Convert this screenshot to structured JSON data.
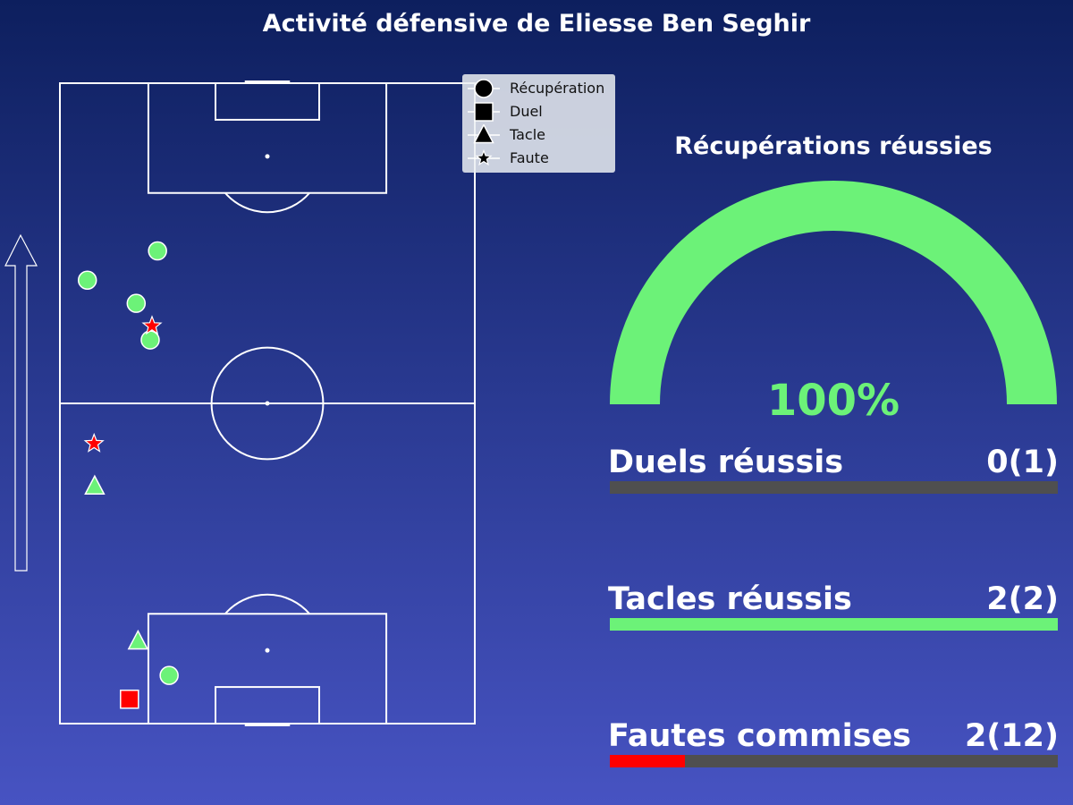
{
  "title": "Activité défensive de Eliesse Ben Seghir",
  "colors": {
    "success": "#6cf278",
    "failure": "#ff0000",
    "track": "#4f4f4f",
    "pitch_lines": "#ffffff"
  },
  "legend": [
    {
      "marker": "circle",
      "label": "Récupération"
    },
    {
      "marker": "square",
      "label": "Duel"
    },
    {
      "marker": "triangle",
      "label": "Tacle"
    },
    {
      "marker": "star",
      "label": "Faute"
    }
  ],
  "gauge": {
    "title": "Récupérations réussies",
    "value_label": "100%",
    "value": 1.0
  },
  "stats": [
    {
      "label": "Duels réussis",
      "value_label": "0(1)",
      "success": 0,
      "total": 1,
      "fill": "success"
    },
    {
      "label": "Tacles réussis",
      "value_label": "2(2)",
      "success": 2,
      "total": 2,
      "fill": "success"
    },
    {
      "label": "Fautes commises",
      "value_label": "2(12)",
      "success": 2,
      "total": 12,
      "fill": "failure"
    }
  ],
  "chart_data": {
    "type": "scatter",
    "title": "Activité défensive de Eliesse Ben Seghir",
    "pitch": {
      "width": 68,
      "length": 105,
      "attack_direction": "up"
    },
    "events": [
      {
        "type": "Récupération",
        "x": 16,
        "y": 77.5,
        "success": true
      },
      {
        "type": "Récupération",
        "x": 4.5,
        "y": 72.7,
        "success": true
      },
      {
        "type": "Récupération",
        "x": 12.5,
        "y": 68.9,
        "success": true
      },
      {
        "type": "Récupération",
        "x": 14.8,
        "y": 62.9,
        "success": true
      },
      {
        "type": "Récupération",
        "x": 17.9,
        "y": 7.9,
        "success": true
      },
      {
        "type": "Faute",
        "x": 15.1,
        "y": 65.2,
        "success": false
      },
      {
        "type": "Faute",
        "x": 5.6,
        "y": 45.9,
        "success": false
      },
      {
        "type": "Tacle",
        "x": 5.7,
        "y": 38.9,
        "success": true
      },
      {
        "type": "Tacle",
        "x": 12.8,
        "y": 13.5,
        "success": true
      },
      {
        "type": "Duel",
        "x": 11.4,
        "y": 4.0,
        "success": false
      }
    ]
  }
}
